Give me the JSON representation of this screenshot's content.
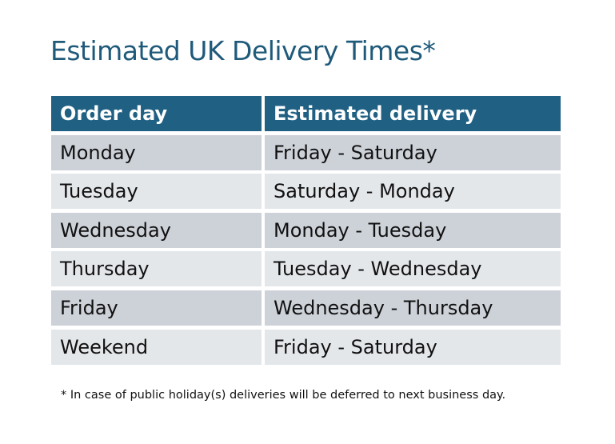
{
  "title": "Estimated UK Delivery Times*",
  "table": {
    "headers": [
      "Order day",
      "Estimated delivery"
    ],
    "rows": [
      [
        "Monday",
        "Friday - Saturday"
      ],
      [
        "Tuesday",
        "Saturday - Monday"
      ],
      [
        "Wednesday",
        "Monday - Tuesday"
      ],
      [
        "Thursday",
        "Tuesday - Wednesday"
      ],
      [
        "Friday",
        "Wednesday - Thursday"
      ],
      [
        "Weekend",
        "Friday - Saturday"
      ]
    ]
  },
  "footnote": "* In case of public holiday(s) deliveries will be deferred to next business day.",
  "colors": {
    "header": "#1f6083",
    "title": "#1f5a7a",
    "row_odd": "#cdd1d8",
    "row_even": "#e4e7ea"
  }
}
